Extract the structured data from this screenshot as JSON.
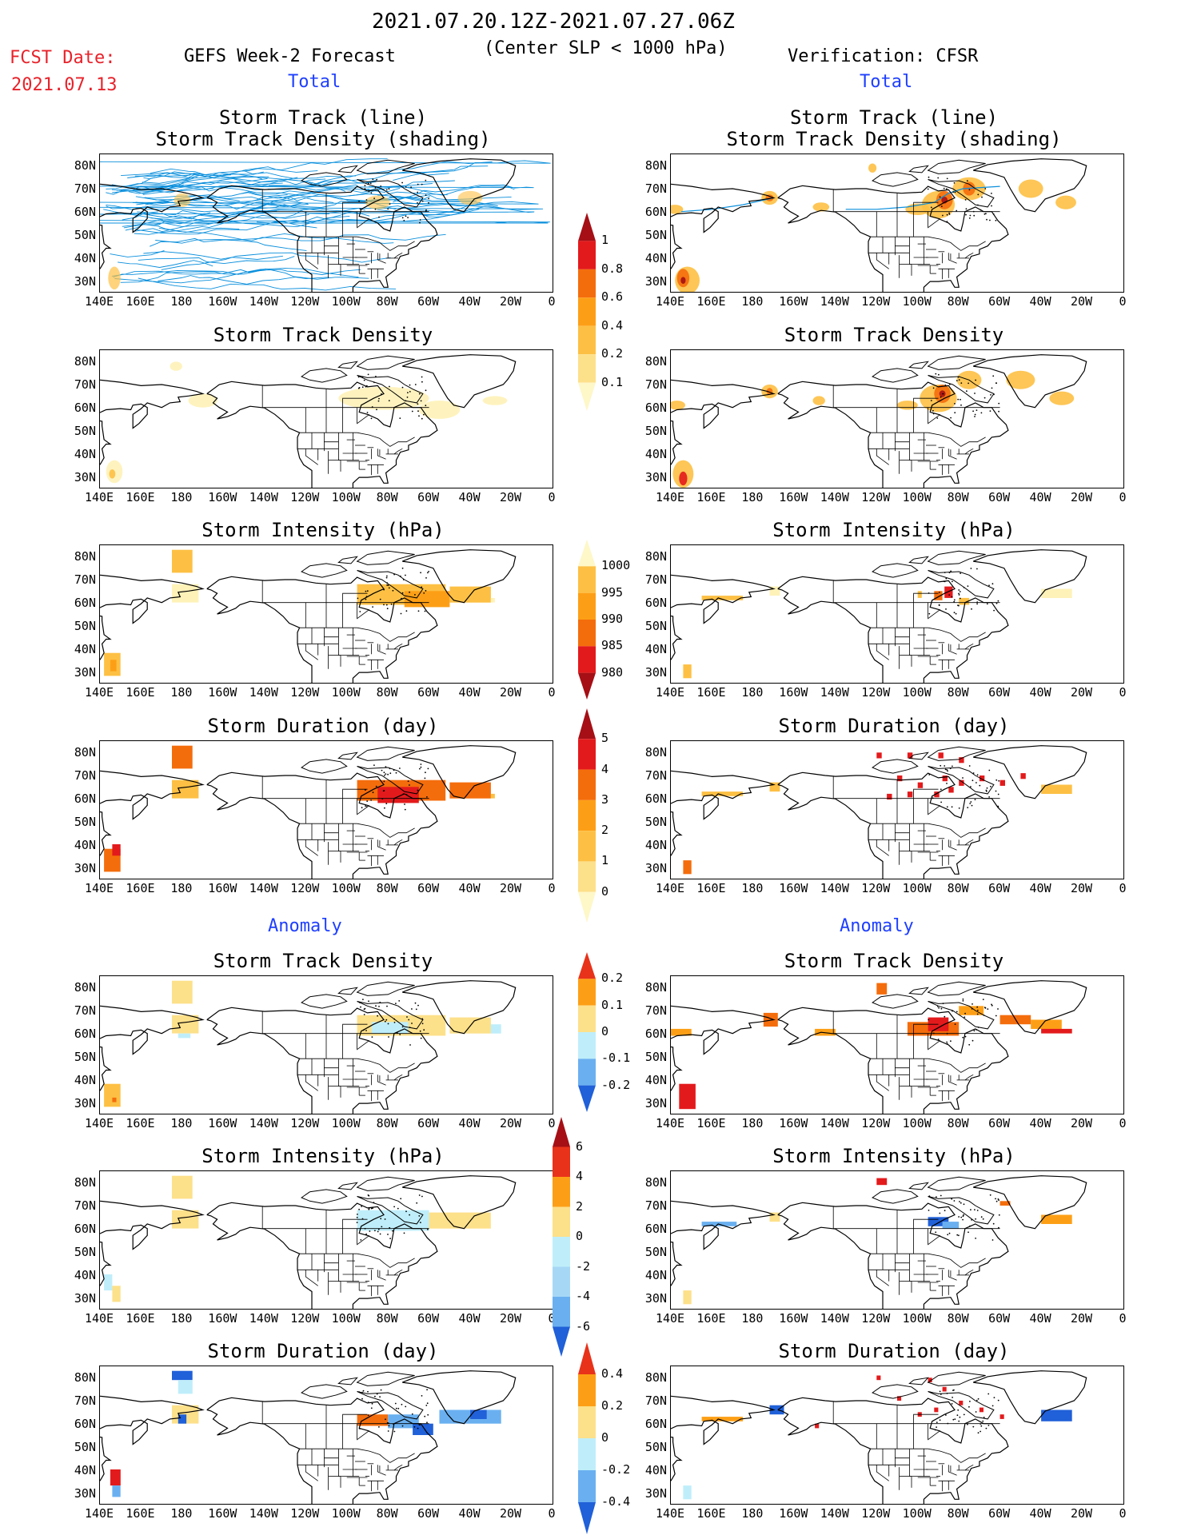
{
  "header": {
    "date_range": "2021.07.20.12Z-2021.07.27.06Z",
    "condition": "(Center SLP < 1000 hPa)",
    "fcst_label": "FCST Date:",
    "fcst_date": "2021.07.13",
    "left_title": "GEFS Week-2 Forecast",
    "right_title": "Verification: CFSR",
    "total_label": "Total",
    "anomaly_label": "Anomaly"
  },
  "panel_titles": {
    "track_line": "Storm Track (line)",
    "track_shading": "Storm Track Density (shading)",
    "density": "Storm Track Density",
    "intensity": "Storm Intensity (hPa)",
    "duration": "Storm Duration (day)"
  },
  "axes": {
    "lat_labels": [
      "80N",
      "70N",
      "60N",
      "50N",
      "40N",
      "30N"
    ],
    "lon_labels": [
      "140E",
      "160E",
      "180",
      "160W",
      "140W",
      "120W",
      "100W",
      "80W",
      "60W",
      "40W",
      "20W",
      "0"
    ]
  },
  "colorbars": {
    "density_total": {
      "labels": [
        "1",
        "0.8",
        "0.6",
        "0.4",
        "0.2",
        "0.1"
      ],
      "colors": [
        "#a50f15",
        "#e31a1c",
        "#f46d0c",
        "#fd9f16",
        "#fdc044",
        "#fde08a",
        "#fef7c8"
      ]
    },
    "intensity_total": {
      "labels": [
        "1000",
        "995",
        "990",
        "985",
        "980"
      ],
      "colors": [
        "#fef7c8",
        "#fdc044",
        "#fd9f16",
        "#f46d0c",
        "#e31a1c",
        "#a50f15"
      ]
    },
    "duration_total": {
      "labels": [
        "5",
        "4",
        "3",
        "2",
        "1",
        "0"
      ],
      "colors": [
        "#a50f15",
        "#e31a1c",
        "#f46d0c",
        "#fd9f16",
        "#fdc044",
        "#fde08a",
        "#fef7c8"
      ]
    },
    "density_anom": {
      "labels": [
        "0.2",
        "0.1",
        "0",
        "-0.1",
        "-0.2"
      ],
      "colors": [
        "#e8321a",
        "#fd9f16",
        "#fde08a",
        "#bfeefa",
        "#6ab0f0",
        "#2060d8"
      ]
    },
    "intensity_anom": {
      "labels": [
        "6",
        "4",
        "2",
        "0",
        "-2",
        "-4",
        "-6"
      ],
      "colors": [
        "#a50f15",
        "#e8321a",
        "#fd9f16",
        "#fde08a",
        "#bfeefa",
        "#a6d8f6",
        "#6ab0f0",
        "#2060d8"
      ]
    },
    "duration_anom": {
      "labels": [
        "0.4",
        "0.2",
        "0",
        "-0.2",
        "-0.4"
      ],
      "colors": [
        "#e8321a",
        "#fd9f16",
        "#fde08a",
        "#bfeefa",
        "#6ab0f0",
        "#2060d8"
      ]
    }
  }
}
